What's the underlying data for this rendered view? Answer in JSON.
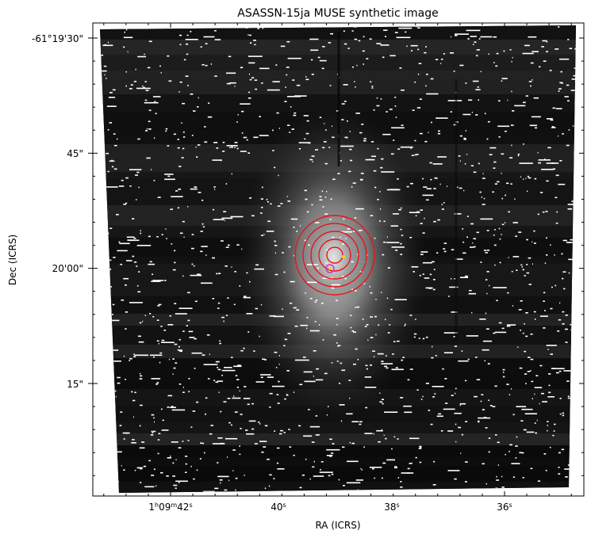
{
  "figure": {
    "title": "ASASSN-15ja MUSE synthetic image",
    "xlabel": "RA (ICRS)",
    "ylabel": "Dec (ICRS)",
    "x_ticks": [
      {
        "base": "1",
        "h": "h",
        "mid": "09",
        "m": "m",
        "sec": "42",
        "s": "s"
      },
      {
        "base": "40",
        "s": "s"
      },
      {
        "base": "38",
        "s": "s"
      },
      {
        "base": "36",
        "s": "s"
      }
    ],
    "y_ticks": [
      "-61°19'30\"",
      "45\"",
      "20'00\"",
      "15\""
    ],
    "colors": {
      "ring": "#e8141c",
      "marker_magenta": "#c040c0",
      "marker_yellow": "#ffd400",
      "background": "#1a1a1a",
      "glow": "#d8d8d8"
    }
  }
}
